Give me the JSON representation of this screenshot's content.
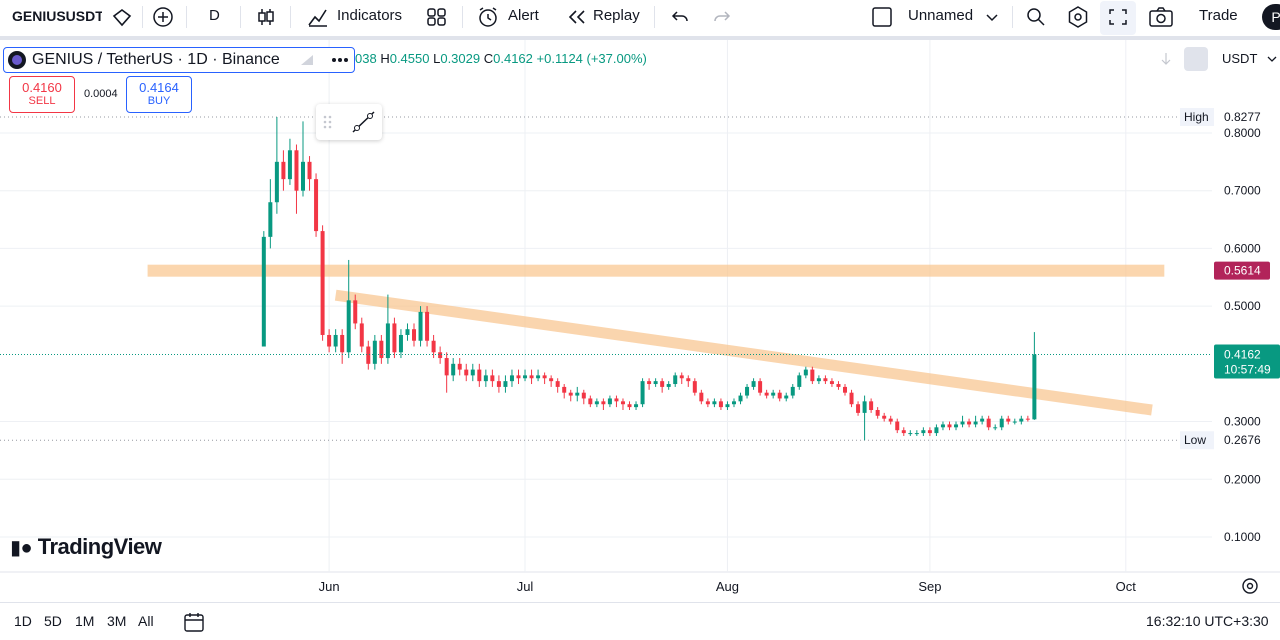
{
  "toolbar": {
    "symbol": "GENIUSUSDT",
    "interval": "D",
    "indicators": "Indicators",
    "alert": "Alert",
    "replay": "Replay",
    "layout": "Unnamed",
    "trade": "Trade",
    "avatar": "P"
  },
  "legend": {
    "title": "GENIUS / TetherUS · 1D · Binance",
    "open": "038",
    "high_key": "H",
    "high": "0.4550",
    "low_key": "L",
    "low": "0.3029",
    "close_key": "C",
    "close": "0.4162",
    "change": "+0.1124 (+37.00%)",
    "sell_price": "0.4160",
    "sell": "SELL",
    "spread": "0.0004",
    "buy_price": "0.4164",
    "buy": "BUY",
    "currency": "USDT"
  },
  "chart_data": {
    "type": "candlestick",
    "brand": "TradingView",
    "x": [
      0,
      1,
      2,
      3,
      4,
      5,
      6,
      7,
      8,
      9,
      10,
      11,
      12,
      13,
      14,
      15,
      16,
      17,
      18,
      19,
      20,
      21,
      22,
      23,
      24,
      25,
      26,
      27,
      28,
      29,
      30,
      31,
      32,
      33,
      34,
      35,
      36,
      37,
      38,
      39,
      40,
      41,
      42,
      43,
      44,
      45,
      46,
      47,
      48,
      49,
      50,
      51,
      52,
      53,
      54,
      55,
      56,
      57,
      58,
      59,
      60,
      61,
      62,
      63,
      64,
      65,
      66,
      67,
      68,
      69,
      70,
      71,
      72,
      73,
      74,
      75,
      76,
      77,
      78,
      79,
      80,
      81,
      82,
      83,
      84,
      85,
      86,
      87,
      88,
      89,
      90,
      91,
      92,
      93,
      94,
      95,
      96,
      97,
      98,
      99,
      100,
      101,
      102,
      103,
      104,
      105,
      106,
      107,
      108,
      109,
      110,
      111,
      112,
      113,
      114,
      115,
      116,
      117,
      118
    ],
    "open": [
      0.43,
      0.62,
      0.68,
      0.75,
      0.72,
      0.77,
      0.7,
      0.75,
      0.72,
      0.63,
      0.45,
      0.43,
      0.45,
      0.42,
      0.51,
      0.47,
      0.43,
      0.4,
      0.44,
      0.41,
      0.47,
      0.42,
      0.45,
      0.46,
      0.44,
      0.49,
      0.44,
      0.42,
      0.41,
      0.38,
      0.4,
      0.39,
      0.38,
      0.39,
      0.37,
      0.38,
      0.37,
      0.36,
      0.37,
      0.38,
      0.375,
      0.38,
      0.375,
      0.38,
      0.375,
      0.37,
      0.36,
      0.35,
      0.345,
      0.35,
      0.34,
      0.33,
      0.335,
      0.33,
      0.34,
      0.335,
      0.33,
      0.325,
      0.33,
      0.37,
      0.365,
      0.37,
      0.36,
      0.365,
      0.38,
      0.375,
      0.37,
      0.35,
      0.335,
      0.33,
      0.335,
      0.325,
      0.33,
      0.335,
      0.345,
      0.36,
      0.37,
      0.35,
      0.345,
      0.35,
      0.34,
      0.345,
      0.36,
      0.38,
      0.39,
      0.37,
      0.375,
      0.37,
      0.365,
      0.36,
      0.35,
      0.33,
      0.315,
      0.335,
      0.32,
      0.31,
      0.305,
      0.3,
      0.285,
      0.28,
      0.28,
      0.28,
      0.285,
      0.28,
      0.29,
      0.295,
      0.29,
      0.295,
      0.3,
      0.295,
      0.3,
      0.305,
      0.29,
      0.29,
      0.305,
      0.3,
      0.3,
      0.305,
      0.3038
    ],
    "high": [
      0.63,
      0.72,
      0.8277,
      0.77,
      0.79,
      0.78,
      0.82,
      0.76,
      0.73,
      0.64,
      0.46,
      0.46,
      0.46,
      0.58,
      0.52,
      0.48,
      0.44,
      0.45,
      0.45,
      0.52,
      0.48,
      0.46,
      0.47,
      0.47,
      0.5,
      0.5,
      0.45,
      0.43,
      0.42,
      0.41,
      0.41,
      0.4,
      0.4,
      0.4,
      0.39,
      0.39,
      0.38,
      0.38,
      0.39,
      0.39,
      0.39,
      0.39,
      0.39,
      0.385,
      0.38,
      0.375,
      0.365,
      0.355,
      0.36,
      0.355,
      0.345,
      0.34,
      0.34,
      0.345,
      0.345,
      0.34,
      0.335,
      0.335,
      0.375,
      0.375,
      0.375,
      0.375,
      0.37,
      0.385,
      0.385,
      0.38,
      0.375,
      0.355,
      0.34,
      0.34,
      0.34,
      0.335,
      0.34,
      0.35,
      0.365,
      0.375,
      0.375,
      0.355,
      0.355,
      0.355,
      0.35,
      0.365,
      0.385,
      0.395,
      0.395,
      0.38,
      0.38,
      0.375,
      0.37,
      0.365,
      0.355,
      0.335,
      0.345,
      0.34,
      0.325,
      0.315,
      0.31,
      0.305,
      0.29,
      0.285,
      0.285,
      0.29,
      0.29,
      0.295,
      0.3,
      0.3,
      0.3,
      0.31,
      0.305,
      0.31,
      0.31,
      0.31,
      0.295,
      0.31,
      0.31,
      0.305,
      0.31,
      0.31,
      0.455
    ],
    "low": [
      0.43,
      0.6,
      0.66,
      0.7,
      0.71,
      0.66,
      0.69,
      0.7,
      0.62,
      0.44,
      0.42,
      0.42,
      0.4,
      0.41,
      0.46,
      0.42,
      0.39,
      0.39,
      0.4,
      0.4,
      0.41,
      0.41,
      0.44,
      0.43,
      0.43,
      0.43,
      0.41,
      0.4,
      0.35,
      0.37,
      0.38,
      0.37,
      0.37,
      0.36,
      0.36,
      0.36,
      0.35,
      0.35,
      0.36,
      0.365,
      0.37,
      0.365,
      0.37,
      0.365,
      0.36,
      0.35,
      0.34,
      0.335,
      0.335,
      0.33,
      0.325,
      0.325,
      0.32,
      0.325,
      0.325,
      0.32,
      0.32,
      0.32,
      0.325,
      0.355,
      0.36,
      0.35,
      0.355,
      0.36,
      0.365,
      0.36,
      0.345,
      0.33,
      0.325,
      0.325,
      0.32,
      0.32,
      0.325,
      0.33,
      0.34,
      0.355,
      0.345,
      0.34,
      0.34,
      0.335,
      0.335,
      0.34,
      0.355,
      0.375,
      0.365,
      0.365,
      0.365,
      0.36,
      0.355,
      0.345,
      0.325,
      0.31,
      0.2676,
      0.315,
      0.305,
      0.3,
      0.295,
      0.28,
      0.275,
      0.275,
      0.275,
      0.275,
      0.275,
      0.275,
      0.285,
      0.285,
      0.285,
      0.29,
      0.29,
      0.29,
      0.295,
      0.285,
      0.285,
      0.285,
      0.295,
      0.295,
      0.295,
      0.3,
      0.3029
    ],
    "close": [
      0.62,
      0.68,
      0.75,
      0.72,
      0.77,
      0.7,
      0.75,
      0.72,
      0.63,
      0.45,
      0.43,
      0.45,
      0.42,
      0.51,
      0.47,
      0.43,
      0.4,
      0.44,
      0.41,
      0.47,
      0.42,
      0.45,
      0.46,
      0.44,
      0.49,
      0.44,
      0.42,
      0.41,
      0.38,
      0.4,
      0.39,
      0.38,
      0.39,
      0.37,
      0.38,
      0.37,
      0.36,
      0.37,
      0.38,
      0.375,
      0.38,
      0.375,
      0.38,
      0.375,
      0.37,
      0.36,
      0.35,
      0.345,
      0.35,
      0.34,
      0.33,
      0.335,
      0.33,
      0.34,
      0.335,
      0.33,
      0.325,
      0.33,
      0.37,
      0.365,
      0.37,
      0.36,
      0.365,
      0.38,
      0.375,
      0.37,
      0.35,
      0.335,
      0.33,
      0.335,
      0.325,
      0.33,
      0.335,
      0.345,
      0.36,
      0.37,
      0.35,
      0.345,
      0.35,
      0.34,
      0.345,
      0.36,
      0.38,
      0.39,
      0.37,
      0.375,
      0.37,
      0.365,
      0.36,
      0.35,
      0.33,
      0.315,
      0.335,
      0.32,
      0.31,
      0.305,
      0.3,
      0.285,
      0.28,
      0.28,
      0.28,
      0.285,
      0.28,
      0.29,
      0.295,
      0.29,
      0.295,
      0.3,
      0.295,
      0.3,
      0.305,
      0.29,
      0.29,
      0.305,
      0.3,
      0.3,
      0.305,
      0.3038,
      0.4162
    ],
    "up_color": "#089981",
    "down_color": "#f23645",
    "xlim": [
      -40.4,
      145.2
    ],
    "xticks": [
      {
        "value": 10,
        "label": "Jun"
      },
      {
        "value": 40,
        "label": "Jul"
      },
      {
        "value": 71,
        "label": "Aug"
      },
      {
        "value": 102,
        "label": "Sep"
      },
      {
        "value": 132,
        "label": "Oct"
      }
    ],
    "ylim": [
      0.0393,
      0.9611
    ],
    "yticks": [
      {
        "value": 0.1,
        "label": "0.1000"
      },
      {
        "value": 0.2,
        "label": "0.2000"
      },
      {
        "value": 0.3,
        "label": "0.3000"
      },
      {
        "value": 0.5,
        "label": "0.5000"
      },
      {
        "value": 0.6,
        "label": "0.6000"
      },
      {
        "value": 0.7,
        "label": "0.7000"
      },
      {
        "value": 0.8,
        "label": "0.8000"
      }
    ],
    "grid": true,
    "high_marker": {
      "label": "High",
      "value": 0.8277
    },
    "low_marker": {
      "label": "Low",
      "value": 0.2676
    },
    "zone": {
      "x": [
        -17.8,
        137.9
      ],
      "level": 0.5614,
      "color": "#f9c48c"
    },
    "trendline": {
      "x": [
        11,
        136
      ],
      "y": [
        0.519,
        0.32
      ],
      "color": "#f9c48c"
    },
    "last_price": {
      "value": 0.4162,
      "countdown": "10:57:49"
    }
  },
  "bottom_bar": {
    "ranges": [
      "1D",
      "5D",
      "1M",
      "3M",
      "All"
    ],
    "clock": "16:32:10 UTC+3:30"
  }
}
